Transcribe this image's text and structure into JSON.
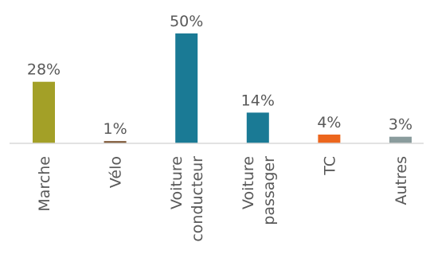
{
  "chart_data": {
    "type": "bar",
    "title": "",
    "xlabel": "",
    "ylabel": "",
    "ylim": [
      0,
      50
    ],
    "grid": false,
    "legend": "none",
    "categories": [
      {
        "lines": [
          "Marche"
        ]
      },
      {
        "lines": [
          "Vélo"
        ]
      },
      {
        "lines": [
          "Voiture",
          "conducteur"
        ]
      },
      {
        "lines": [
          "Voiture",
          "passager"
        ]
      },
      {
        "lines": [
          "TC"
        ]
      },
      {
        "lines": [
          "Autres"
        ]
      }
    ],
    "values": [
      28,
      1,
      50,
      14,
      4,
      3
    ],
    "value_labels": [
      "28%",
      "1%",
      "50%",
      "14%",
      "4%",
      "3%"
    ],
    "colors": [
      "#a3a027",
      "#7a5230",
      "#1a7a95",
      "#1a7a95",
      "#ec661d",
      "#8a9c9d"
    ]
  }
}
